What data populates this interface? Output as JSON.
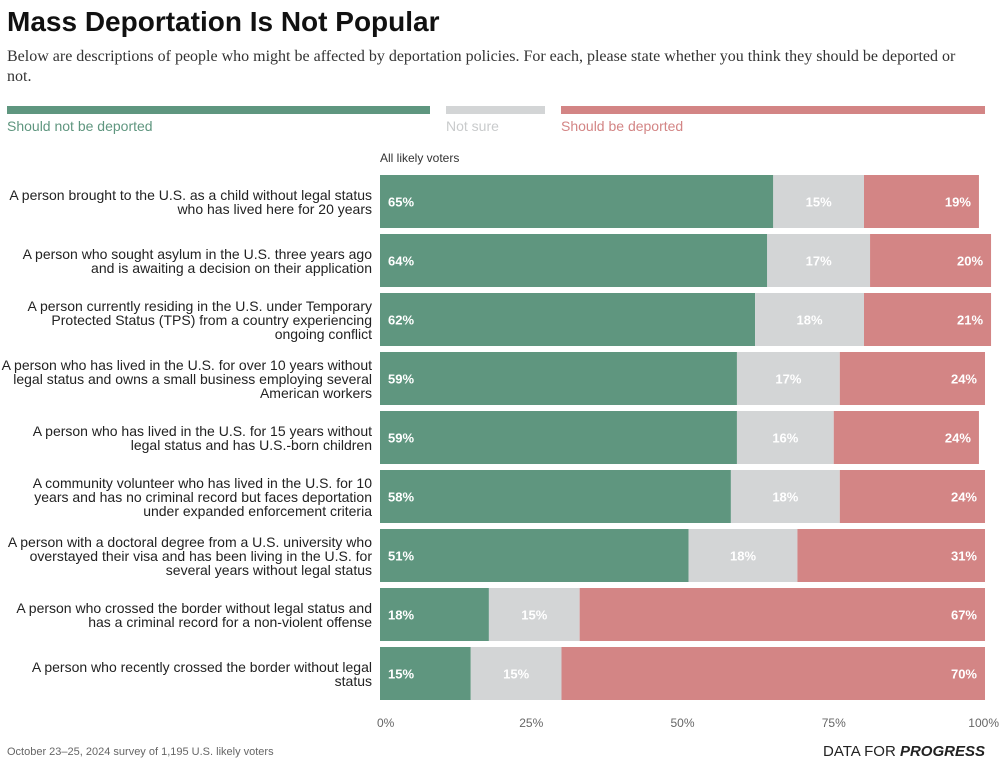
{
  "chart_data": {
    "type": "stacked-bar-horizontal",
    "title": "Mass Deportation Is Not Popular",
    "description": "Below are descriptions of people who might be affected by deportation policies. For each, please state whether you think they should be deported or not.",
    "group_label": "All likely voters",
    "categories": [
      "A person brought to the U.S. as a child without legal status who has lived here for 20 years",
      "A person who sought asylum in the U.S. three years ago and is awaiting a decision on their application",
      "A person currently residing in the U.S. under Temporary Protected Status (TPS) from a country experiencing ongoing conflict",
      "A person who has lived in the U.S. for over 10 years without legal status and owns a small business employing several American workers",
      "A person who has lived in the U.S. for 15 years without legal status and has U.S.-born children",
      "A community volunteer who has lived in the U.S. for 10 years and has no criminal record but faces deportation under expanded enforcement criteria",
      "A person with a doctoral degree from a U.S. university who overstayed their visa and has been living in the U.S. for several years without legal status",
      "A person who crossed the border without legal status and has a criminal record for a non-violent offense",
      "A person who recently crossed the border without legal status"
    ],
    "series": [
      {
        "name": "Should not be deported",
        "color": "#5f967f",
        "text_color": "#5f967f",
        "values": [
          65,
          64,
          62,
          59,
          59,
          58,
          51,
          18,
          15
        ],
        "value_labels": [
          "65%",
          "64%",
          "62%",
          "59%",
          "59%",
          "58%",
          "51%",
          "18%",
          "15%"
        ]
      },
      {
        "name": "Not sure",
        "color": "#d3d5d6",
        "text_color": "#c9cbcc",
        "values": [
          15,
          17,
          18,
          17,
          16,
          18,
          18,
          15,
          15
        ],
        "value_labels": [
          "15%",
          "17%",
          "18%",
          "17%",
          "16%",
          "18%",
          "18%",
          "15%",
          "15%"
        ]
      },
      {
        "name": "Should be deported",
        "color": "#d38585",
        "text_color": "#d38585",
        "values": [
          19,
          20,
          21,
          24,
          24,
          24,
          31,
          67,
          70
        ],
        "value_labels": [
          "19%",
          "20%",
          "21%",
          "24%",
          "24%",
          "24%",
          "31%",
          "67%",
          "70%"
        ]
      }
    ],
    "xlim": [
      0,
      100
    ],
    "xticks": [
      {
        "value": 0,
        "label": "0%"
      },
      {
        "value": 25,
        "label": "25%"
      },
      {
        "value": 50,
        "label": "50%"
      },
      {
        "value": 75,
        "label": "75%"
      },
      {
        "value": 100,
        "label": "100%"
      }
    ],
    "source": "October 23–25, 2024 survey of 1,195 U.S. likely voters",
    "brand": {
      "first": "DATA FOR",
      "second": "PROGRESS"
    }
  }
}
